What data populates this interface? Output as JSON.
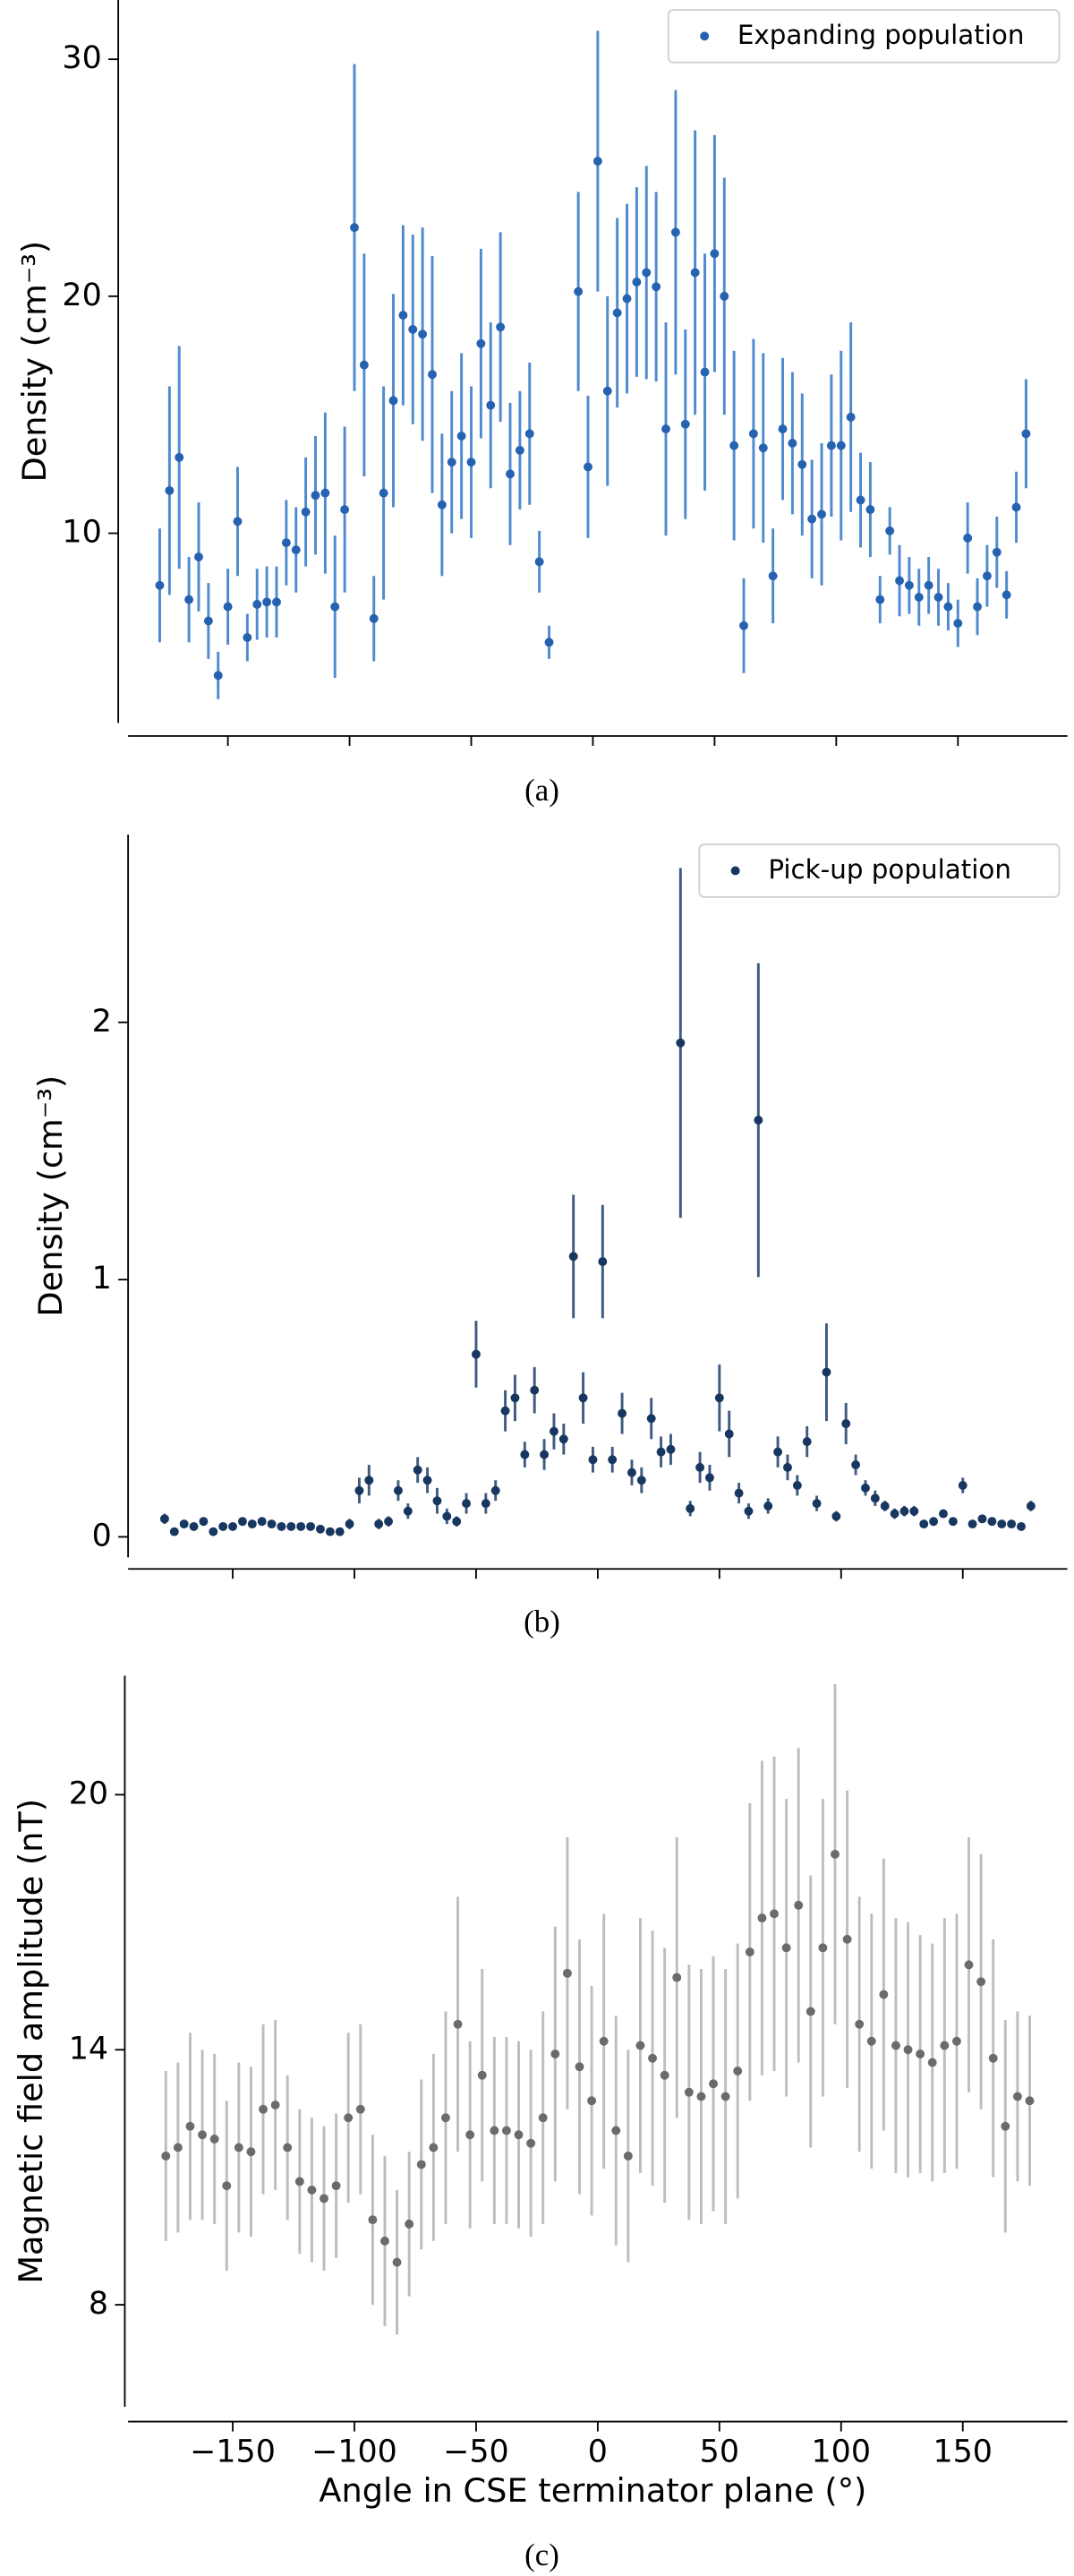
{
  "chart_data": [
    {
      "type": "scatter",
      "caption": "(a)",
      "ylabel": "Density (cm⁻³)",
      "legend": "upper right",
      "x": [
        -178,
        -174,
        -170,
        -166,
        -162,
        -158,
        -154,
        -150,
        -146,
        -142,
        -138,
        -134,
        -130,
        -126,
        -122,
        -118,
        -114,
        -110,
        -106,
        -102,
        -98,
        -94,
        -90,
        -86,
        -82,
        -78,
        -74,
        -70,
        -66,
        -62,
        -58,
        -54,
        -50,
        -46,
        -42,
        -38,
        -34,
        -30,
        -26,
        -22,
        -18,
        -14,
        -10,
        -6,
        -2,
        2,
        6,
        10,
        14,
        18,
        22,
        26,
        30,
        34,
        38,
        42,
        46,
        50,
        54,
        58,
        62,
        66,
        70,
        74,
        78,
        82,
        86,
        90,
        94,
        98,
        102,
        106,
        110,
        114,
        118,
        122,
        126,
        130,
        134,
        138,
        142,
        146,
        150,
        154,
        158,
        162,
        166,
        170,
        174,
        178
      ],
      "series": [
        {
          "name": "Expanding population",
          "color": "#2563b0",
          "error_color": "#4f8ad0",
          "values": [
            7.8,
            11.8,
            13.2,
            7.2,
            9.0,
            6.3,
            4.0,
            6.9,
            10.5,
            5.6,
            7.0,
            7.1,
            7.1,
            9.6,
            9.3,
            10.9,
            11.6,
            11.7,
            6.9,
            11.0,
            22.9,
            17.1,
            6.4,
            11.7,
            15.6,
            19.2,
            18.6,
            18.4,
            16.7,
            11.2,
            13.0,
            14.1,
            13.0,
            18.0,
            15.4,
            18.7,
            12.5,
            13.5,
            14.2,
            8.8,
            5.4,
            null,
            null,
            20.2,
            12.8,
            25.7,
            16.0,
            19.3,
            19.9,
            20.6,
            21.0,
            20.4,
            14.4,
            22.7,
            14.6,
            21.0,
            16.8,
            21.8,
            20.0,
            13.7,
            6.1,
            14.2,
            13.6,
            8.2,
            14.4,
            13.8,
            12.9,
            10.6,
            10.8,
            13.7,
            13.7,
            14.9,
            11.4,
            11.0,
            7.2,
            10.1,
            8.0,
            7.8,
            7.3,
            7.8,
            7.3,
            6.9,
            6.2,
            9.8,
            6.9,
            8.2,
            9.2,
            7.4,
            11.1,
            14.2
          ],
          "errors": [
            2.4,
            4.4,
            4.7,
            1.8,
            2.3,
            1.6,
            1.0,
            1.6,
            2.3,
            1.0,
            1.5,
            1.5,
            1.5,
            1.8,
            1.8,
            2.3,
            2.5,
            3.4,
            3.0,
            3.5,
            6.9,
            4.7,
            1.8,
            4.5,
            4.5,
            3.8,
            4.0,
            4.5,
            5.0,
            3.0,
            3.0,
            3.5,
            3.2,
            4.0,
            3.5,
            4.0,
            3.0,
            2.5,
            3.0,
            1.3,
            0.7,
            null,
            null,
            4.2,
            3.0,
            5.5,
            4.0,
            4.0,
            4.0,
            4.0,
            4.5,
            4.0,
            4.5,
            6.0,
            4.0,
            6.0,
            5.0,
            5.0,
            5.0,
            4.0,
            2.0,
            4.0,
            4.0,
            2.0,
            3.0,
            3.0,
            3.0,
            2.5,
            3.0,
            3.0,
            4.0,
            4.0,
            2.0,
            2.0,
            1.0,
            1.0,
            1.5,
            1.2,
            1.2,
            1.2,
            1.2,
            1.0,
            1.0,
            1.5,
            1.2,
            1.3,
            1.5,
            1.0,
            1.5,
            2.3
          ]
        }
      ],
      "xlim": [
        -191,
        195
      ],
      "xticks": [
        -150,
        -100,
        -50,
        0,
        50,
        100,
        150
      ],
      "ylim": [
        2.0,
        32.5
      ],
      "yticks": [
        10,
        20,
        30
      ]
    },
    {
      "type": "scatter",
      "caption": "(b)",
      "ylabel": "Density (cm⁻³)",
      "legend": "upper right",
      "x": [
        -178,
        -174,
        -170,
        -166,
        -162,
        -158,
        -154,
        -150,
        -146,
        -142,
        -138,
        -134,
        -130,
        -126,
        -122,
        -118,
        -114,
        -110,
        -106,
        -102,
        -98,
        -94,
        -90,
        -86,
        -82,
        -78,
        -74,
        -70,
        -66,
        -62,
        -58,
        -54,
        -50,
        -46,
        -42,
        -38,
        -34,
        -30,
        -26,
        -22,
        -18,
        -14,
        -10,
        -6,
        -2,
        2,
        6,
        10,
        14,
        18,
        22,
        26,
        30,
        34,
        38,
        42,
        46,
        50,
        54,
        58,
        62,
        66,
        70,
        74,
        78,
        82,
        86,
        90,
        94,
        98,
        102,
        106,
        110,
        114,
        118,
        122,
        126,
        130,
        134,
        138,
        142,
        146,
        150,
        154,
        158,
        162,
        166,
        170,
        174,
        178
      ],
      "series": [
        {
          "name": "Pick-up population",
          "color": "#173660",
          "error_color": "#3f5b80",
          "values": [
            0.07,
            0.02,
            0.05,
            0.04,
            0.06,
            0.02,
            0.04,
            0.04,
            0.06,
            0.05,
            0.06,
            0.05,
            0.04,
            0.04,
            0.04,
            0.04,
            0.03,
            0.02,
            0.02,
            0.05,
            0.18,
            0.22,
            0.05,
            0.06,
            0.18,
            0.1,
            0.26,
            0.22,
            0.14,
            0.08,
            0.06,
            0.13,
            0.71,
            0.13,
            0.18,
            0.49,
            0.54,
            0.32,
            0.57,
            0.32,
            0.41,
            0.38,
            1.09,
            0.54,
            0.3,
            1.07,
            0.3,
            0.48,
            0.25,
            0.22,
            0.46,
            0.33,
            0.34,
            1.92,
            0.11,
            0.27,
            0.23,
            0.54,
            0.4,
            0.17,
            0.1,
            1.62,
            0.12,
            0.33,
            0.27,
            0.2,
            0.37,
            0.13,
            0.64,
            0.08,
            0.44,
            0.28,
            0.19,
            0.15,
            0.12,
            0.09,
            0.1,
            0.1,
            0.05,
            0.06,
            0.09,
            0.06,
            0.2,
            0.05,
            0.07,
            0.06,
            0.05,
            0.05,
            0.04,
            0.12
          ],
          "errors": [
            0.02,
            0.015,
            0.015,
            0.015,
            0.015,
            0.015,
            0.015,
            0.015,
            0.015,
            0.015,
            0.015,
            0.015,
            0.015,
            0.015,
            0.015,
            0.015,
            0.015,
            0.015,
            0.015,
            0.02,
            0.05,
            0.06,
            0.02,
            0.02,
            0.04,
            0.03,
            0.05,
            0.05,
            0.05,
            0.03,
            0.02,
            0.04,
            0.13,
            0.04,
            0.04,
            0.08,
            0.09,
            0.05,
            0.09,
            0.06,
            0.07,
            0.06,
            0.24,
            0.1,
            0.05,
            0.22,
            0.05,
            0.08,
            0.05,
            0.05,
            0.08,
            0.06,
            0.06,
            0.68,
            0.03,
            0.06,
            0.05,
            0.13,
            0.09,
            0.04,
            0.03,
            0.61,
            0.03,
            0.06,
            0.05,
            0.04,
            0.06,
            0.03,
            0.19,
            0.02,
            0.08,
            0.04,
            0.03,
            0.03,
            0.02,
            0.02,
            0.02,
            0.02,
            0.015,
            0.015,
            0.015,
            0.015,
            0.03,
            0.015,
            0.015,
            0.015,
            0.015,
            0.015,
            0.015,
            0.02
          ]
        }
      ],
      "xlim": [
        -193,
        193
      ],
      "xticks": [
        -150,
        -100,
        -50,
        0,
        50,
        100,
        150
      ],
      "ylim": [
        -0.08,
        2.73
      ],
      "yticks": [
        0,
        1,
        2
      ]
    },
    {
      "type": "scatter",
      "caption": "(c)",
      "ylabel": "Magnetic field amplitude (nT)",
      "xlabel": "Angle in CSE terminator plane (°)",
      "x": [
        -177.5,
        -172.5,
        -167.5,
        -162.5,
        -157.5,
        -152.5,
        -147.5,
        -142.5,
        -137.5,
        -132.5,
        -127.5,
        -122.5,
        -117.5,
        -112.5,
        -107.5,
        -102.5,
        -97.5,
        -92.5,
        -87.5,
        -82.5,
        -77.5,
        -72.5,
        -67.5,
        -62.5,
        -57.5,
        -52.5,
        -47.5,
        -42.5,
        -37.5,
        -32.5,
        -27.5,
        -22.5,
        -17.5,
        -12.5,
        -7.5,
        -2.5,
        2.5,
        7.5,
        12.5,
        17.5,
        22.5,
        27.5,
        32.5,
        37.5,
        42.5,
        47.5,
        52.5,
        57.5,
        62.5,
        67.5,
        72.5,
        77.5,
        82.5,
        87.5,
        92.5,
        97.5,
        102.5,
        107.5,
        112.5,
        117.5,
        122.5,
        127.5,
        132.5,
        137.5,
        142.5,
        147.5,
        152.5,
        157.5,
        162.5,
        167.5,
        172.5,
        177.5
      ],
      "series": [
        {
          "color": "#6b6b6b",
          "error_color": "#bdbdbd",
          "values": [
            11.5,
            11.7,
            12.2,
            12.0,
            11.9,
            10.8,
            11.7,
            11.6,
            12.6,
            12.7,
            11.7,
            10.9,
            10.7,
            10.5,
            10.8,
            12.4,
            12.6,
            10.0,
            9.5,
            9.0,
            9.9,
            11.3,
            11.7,
            12.4,
            14.6,
            12.0,
            13.4,
            12.1,
            12.1,
            12.0,
            11.8,
            12.4,
            13.9,
            15.8,
            13.6,
            12.8,
            14.2,
            12.1,
            11.5,
            14.1,
            13.8,
            13.4,
            15.7,
            13.0,
            12.9,
            13.2,
            12.9,
            13.5,
            16.3,
            17.1,
            17.2,
            16.4,
            17.4,
            14.9,
            16.4,
            18.6,
            16.6,
            14.6,
            14.2,
            15.3,
            14.1,
            14.0,
            13.9,
            13.7,
            14.1,
            14.2,
            16.0,
            15.6,
            13.8,
            12.2,
            12.9,
            12.8
          ],
          "errors": [
            2.0,
            2.0,
            2.2,
            2.0,
            2.0,
            2.0,
            2.0,
            2.0,
            2.0,
            2.0,
            1.7,
            1.7,
            1.7,
            1.7,
            1.7,
            2.0,
            2.0,
            2.0,
            2.0,
            1.7,
            1.7,
            2.0,
            2.2,
            2.5,
            3.0,
            2.2,
            2.5,
            2.2,
            2.2,
            2.2,
            2.2,
            2.5,
            3.0,
            3.2,
            3.0,
            2.7,
            3.0,
            2.7,
            2.5,
            3.0,
            3.0,
            3.0,
            3.3,
            3.0,
            3.0,
            3.0,
            3.0,
            3.0,
            3.5,
            3.7,
            3.7,
            3.5,
            3.7,
            3.2,
            3.5,
            4.0,
            3.5,
            3.0,
            3.0,
            3.2,
            3.0,
            3.0,
            2.8,
            2.8,
            3.0,
            3.0,
            3.0,
            3.0,
            2.8,
            2.5,
            2.0,
            2.0
          ]
        }
      ],
      "xlim": [
        -193,
        193
      ],
      "xticks": [
        {
          "value": -150,
          "label": "−150"
        },
        {
          "value": -100,
          "label": "−100"
        },
        {
          "value": -50,
          "label": "−50"
        },
        0,
        50,
        100,
        150
      ],
      "ylim": [
        5.6,
        22.8
      ],
      "yticks": [
        8,
        14,
        20
      ]
    }
  ]
}
